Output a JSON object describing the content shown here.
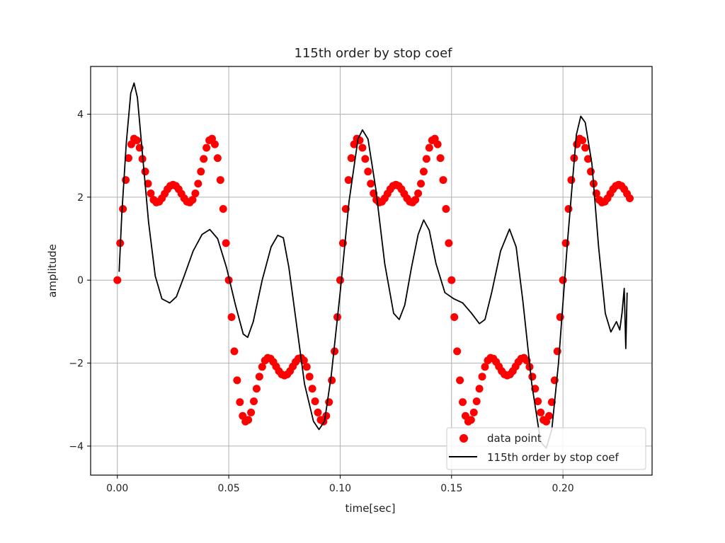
{
  "chart_data": {
    "type": "scatter",
    "title": "115th order by stop coef",
    "xlabel": "time[sec]",
    "ylabel": "amplitude",
    "xlim": [
      -0.012,
      0.24
    ],
    "ylim": [
      -4.7,
      5.15
    ],
    "xticks": [
      0.0,
      0.05,
      0.1,
      0.15,
      0.2
    ],
    "xtick_labels": [
      "0.00",
      "0.05",
      "0.10",
      "0.15",
      "0.20"
    ],
    "yticks": [
      -4,
      -2,
      0,
      2,
      4
    ],
    "ytick_labels": [
      "−4",
      "−2",
      "0",
      "2",
      "4"
    ],
    "grid": true,
    "legend_position": "lower-right",
    "series": [
      {
        "name": "data point",
        "kind": "scatter",
        "color": "#ff0000",
        "x_start": 0.0,
        "x_step": 0.00125,
        "count": 185,
        "model": {
          "terms": [
            {
              "amp": 3.0,
              "freq": 10
            },
            {
              "amp": 1.5,
              "freq": 30
            },
            {
              "amp": 0.8,
              "freq": 50
            }
          ]
        }
      },
      {
        "name": "115th order by stop coef",
        "kind": "line",
        "color": "#000000",
        "points": [
          [
            0.0008,
            0.2
          ],
          [
            0.002,
            1.6
          ],
          [
            0.004,
            3.3
          ],
          [
            0.006,
            4.5
          ],
          [
            0.0075,
            4.75
          ],
          [
            0.009,
            4.4
          ],
          [
            0.011,
            3.2
          ],
          [
            0.014,
            1.4
          ],
          [
            0.017,
            0.1
          ],
          [
            0.02,
            -0.45
          ],
          [
            0.0235,
            -0.55
          ],
          [
            0.0265,
            -0.4
          ],
          [
            0.03,
            0.1
          ],
          [
            0.034,
            0.7
          ],
          [
            0.038,
            1.1
          ],
          [
            0.0415,
            1.22
          ],
          [
            0.045,
            1.0
          ],
          [
            0.049,
            0.3
          ],
          [
            0.053,
            -0.6
          ],
          [
            0.0565,
            -1.3
          ],
          [
            0.0585,
            -1.38
          ],
          [
            0.061,
            -1.0
          ],
          [
            0.065,
            0.0
          ],
          [
            0.069,
            0.8
          ],
          [
            0.072,
            1.08
          ],
          [
            0.0745,
            1.02
          ],
          [
            0.077,
            0.3
          ],
          [
            0.08,
            -0.9
          ],
          [
            0.084,
            -2.5
          ],
          [
            0.088,
            -3.4
          ],
          [
            0.0905,
            -3.6
          ],
          [
            0.093,
            -3.4
          ],
          [
            0.096,
            -2.3
          ],
          [
            0.1,
            -0.3
          ],
          [
            0.104,
            1.9
          ],
          [
            0.108,
            3.4
          ],
          [
            0.11,
            3.62
          ],
          [
            0.1125,
            3.4
          ],
          [
            0.116,
            2.2
          ],
          [
            0.12,
            0.4
          ],
          [
            0.124,
            -0.8
          ],
          [
            0.1265,
            -0.95
          ],
          [
            0.129,
            -0.6
          ],
          [
            0.132,
            0.3
          ],
          [
            0.135,
            1.1
          ],
          [
            0.1375,
            1.45
          ],
          [
            0.14,
            1.2
          ],
          [
            0.143,
            0.4
          ],
          [
            0.147,
            -0.3
          ],
          [
            0.151,
            -0.45
          ],
          [
            0.155,
            -0.55
          ],
          [
            0.159,
            -0.8
          ],
          [
            0.1625,
            -1.05
          ],
          [
            0.165,
            -0.95
          ],
          [
            0.168,
            -0.3
          ],
          [
            0.172,
            0.7
          ],
          [
            0.176,
            1.23
          ],
          [
            0.179,
            0.8
          ],
          [
            0.182,
            -0.5
          ],
          [
            0.186,
            -2.5
          ],
          [
            0.19,
            -3.9
          ],
          [
            0.1925,
            -4.05
          ],
          [
            0.195,
            -3.6
          ],
          [
            0.198,
            -2.0
          ],
          [
            0.202,
            0.9
          ],
          [
            0.206,
            3.5
          ],
          [
            0.208,
            3.95
          ],
          [
            0.21,
            3.8
          ],
          [
            0.213,
            2.8
          ],
          [
            0.216,
            0.8
          ],
          [
            0.219,
            -0.8
          ],
          [
            0.2215,
            -1.25
          ],
          [
            0.224,
            -1.0
          ],
          [
            0.2255,
            -1.2
          ],
          [
            0.2265,
            -0.8
          ],
          [
            0.2275,
            -0.2
          ],
          [
            0.2282,
            -1.65
          ],
          [
            0.2288,
            -0.3
          ]
        ]
      }
    ]
  }
}
